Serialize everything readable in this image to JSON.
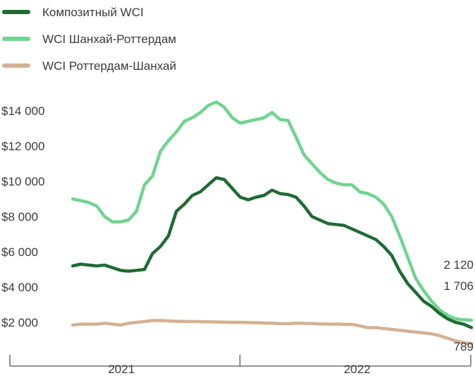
{
  "chart_data": {
    "type": "line",
    "title": "",
    "xlabel": "",
    "ylabel": "",
    "ylim": [
      1000,
      15000
    ],
    "y_ticks": [
      {
        "value": 2000,
        "label": "$2 000"
      },
      {
        "value": 4000,
        "label": "$4 000"
      },
      {
        "value": 6000,
        "label": "$6 000"
      },
      {
        "value": 8000,
        "label": "$8 000"
      },
      {
        "value": 10000,
        "label": "$10 000"
      },
      {
        "value": 12000,
        "label": "$12 000"
      },
      {
        "value": 14000,
        "label": "$14 000"
      }
    ],
    "x_categories": [
      "2021",
      "2022"
    ],
    "legend_position": "top-left",
    "grid": false,
    "x": [
      "2020-10-01",
      "2020-10-15",
      "2020-11-01",
      "2020-11-15",
      "2020-12-01",
      "2020-12-15",
      "2021-01-01",
      "2021-01-15",
      "2021-02-01",
      "2021-02-15",
      "2021-03-01",
      "2021-03-15",
      "2021-04-01",
      "2021-04-15",
      "2021-05-01",
      "2021-05-15",
      "2021-06-01",
      "2021-06-15",
      "2021-07-01",
      "2021-07-15",
      "2021-08-01",
      "2021-08-15",
      "2021-09-01",
      "2021-09-15",
      "2021-10-01",
      "2021-10-15",
      "2021-11-01",
      "2021-11-15",
      "2021-12-01",
      "2021-12-15",
      "2022-01-01",
      "2022-01-15",
      "2022-02-01",
      "2022-02-15",
      "2022-03-01",
      "2022-03-15",
      "2022-04-01",
      "2022-04-15",
      "2022-05-01",
      "2022-05-15",
      "2022-06-01",
      "2022-06-15",
      "2022-07-01",
      "2022-07-15",
      "2022-08-01",
      "2022-08-15",
      "2022-09-01",
      "2022-09-15",
      "2022-10-01",
      "2022-10-15",
      "2022-11-01"
    ],
    "series": [
      {
        "name": "Композитный WCI",
        "color": "#1f6b33",
        "values": [
          5200,
          5300,
          5250,
          5200,
          5250,
          5100,
          4950,
          4900,
          4950,
          5000,
          5900,
          6300,
          6900,
          8300,
          8700,
          9200,
          9400,
          9800,
          10200,
          10100,
          9600,
          9100,
          8950,
          9100,
          9200,
          9500,
          9300,
          9250,
          9100,
          8600,
          8000,
          7800,
          7600,
          7550,
          7500,
          7300,
          7100,
          6900,
          6700,
          6300,
          5800,
          4900,
          4200,
          3700,
          3200,
          2900,
          2500,
          2200,
          2000,
          1900,
          1706
        ],
        "end_label": "1 706"
      },
      {
        "name": "WCI Шанхай-Роттердам",
        "color": "#6fd48f",
        "values": [
          9000,
          8900,
          8800,
          8600,
          8000,
          7700,
          7700,
          7800,
          8300,
          9800,
          10300,
          11700,
          12300,
          12800,
          13400,
          13600,
          13900,
          14300,
          14500,
          14200,
          13600,
          13300,
          13400,
          13500,
          13600,
          13900,
          13500,
          13450,
          12500,
          11500,
          11000,
          10500,
          10100,
          9900,
          9800,
          9800,
          9400,
          9300,
          9100,
          8700,
          8000,
          6900,
          5700,
          4500,
          3800,
          3200,
          2700,
          2400,
          2200,
          2150,
          2120
        ],
        "end_label": "2 120"
      },
      {
        "name": "WCI Роттердам-Шанхай",
        "color": "#d3b192",
        "values": [
          1850,
          1900,
          1900,
          1900,
          1950,
          1900,
          1850,
          1950,
          2000,
          2050,
          2100,
          2100,
          2080,
          2060,
          2050,
          2050,
          2040,
          2030,
          2020,
          2010,
          2000,
          2000,
          1990,
          1980,
          1960,
          1950,
          1930,
          1920,
          1950,
          1940,
          1930,
          1910,
          1900,
          1900,
          1890,
          1880,
          1800,
          1700,
          1700,
          1650,
          1600,
          1550,
          1500,
          1450,
          1400,
          1350,
          1250,
          1100,
          950,
          850,
          789
        ],
        "end_label": "789"
      }
    ]
  }
}
